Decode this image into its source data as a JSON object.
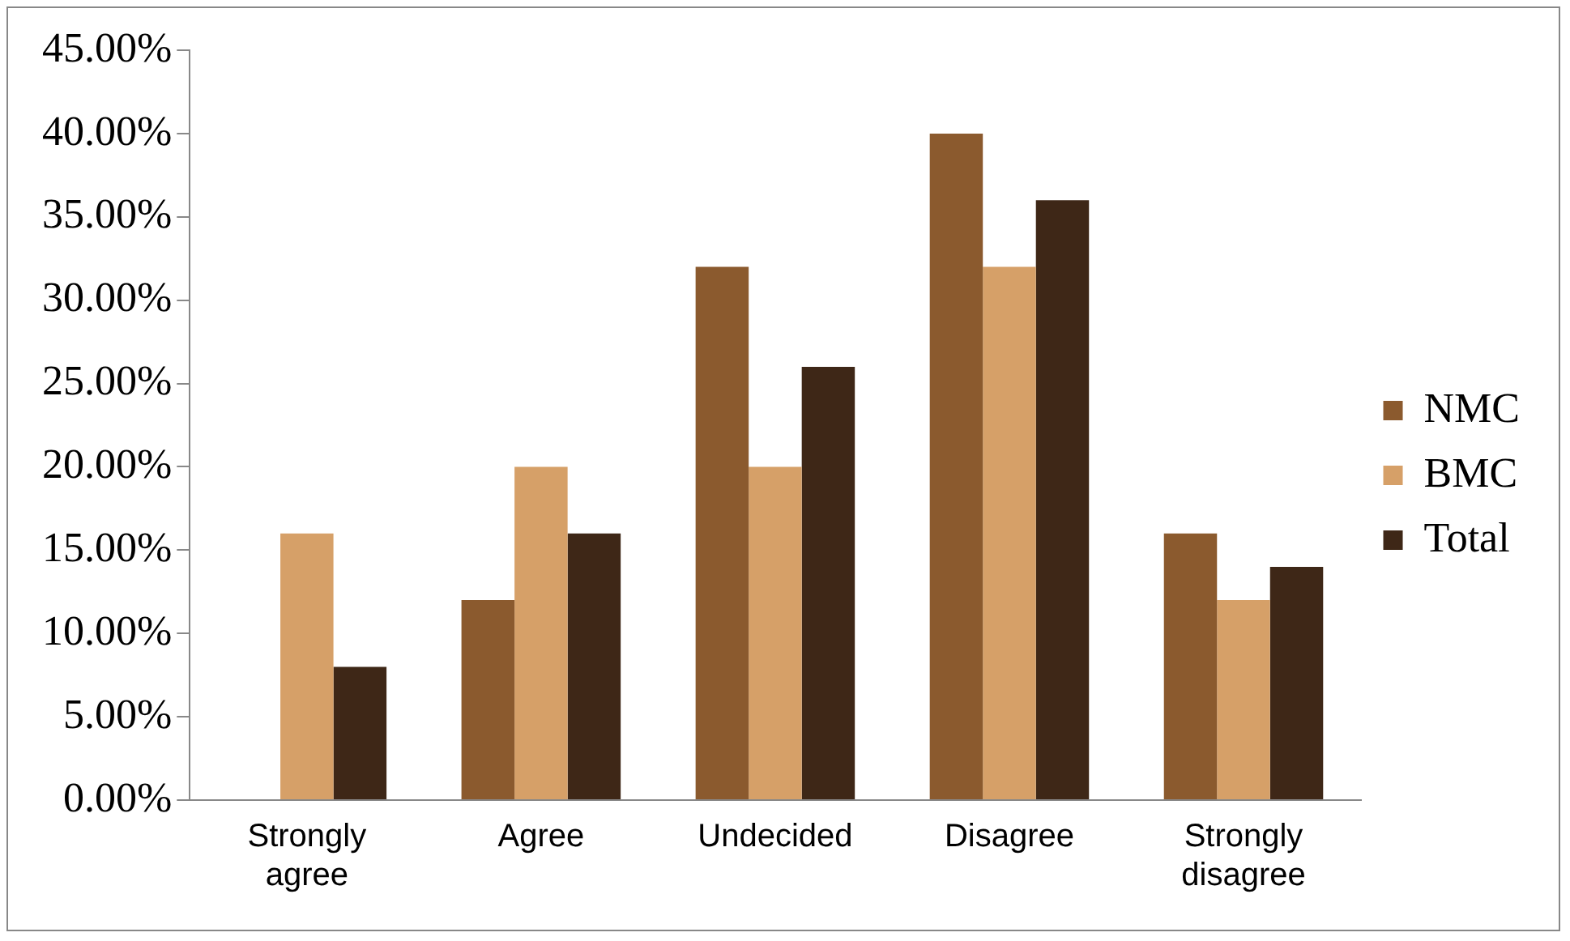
{
  "chart_data": {
    "type": "bar",
    "categories": [
      "Strongly agree",
      "Agree",
      "Undecided",
      "Disagree",
      "Strongly disagree"
    ],
    "series": [
      {
        "name": "NMC",
        "color": "#8b5a2e",
        "values": [
          0,
          12,
          32,
          40,
          16
        ]
      },
      {
        "name": "BMC",
        "color": "#d6a068",
        "values": [
          16,
          20,
          20,
          32,
          12
        ]
      },
      {
        "name": "Total",
        "color": "#3e2717",
        "values": [
          8,
          16,
          26,
          36,
          14
        ]
      }
    ],
    "ylim": [
      0,
      45
    ],
    "yticks": [
      {
        "value": 0,
        "label": "0.00%"
      },
      {
        "value": 5,
        "label": "5.00%"
      },
      {
        "value": 10,
        "label": "10.00%"
      },
      {
        "value": 15,
        "label": "15.00%"
      },
      {
        "value": 20,
        "label": "20.00%"
      },
      {
        "value": 25,
        "label": "25.00%"
      },
      {
        "value": 30,
        "label": "30.00%"
      },
      {
        "value": 35,
        "label": "35.00%"
      },
      {
        "value": 40,
        "label": "40.00%"
      },
      {
        "value": 45,
        "label": "45.00%"
      }
    ],
    "grid": false,
    "legend": "right"
  }
}
